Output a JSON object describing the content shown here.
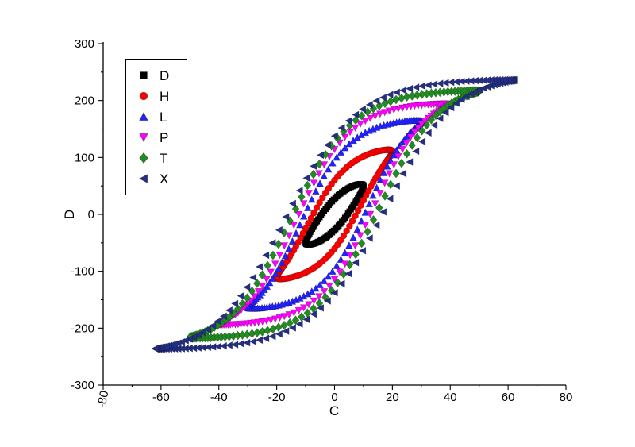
{
  "chart_data": {
    "type": "scatter",
    "title": "",
    "xlabel": "C",
    "ylabel": "D",
    "xlim": [
      -80,
      80
    ],
    "ylim": [
      -300,
      300
    ],
    "x_ticks": [
      -80,
      -60,
      -40,
      -20,
      0,
      20,
      40,
      60,
      80
    ],
    "y_ticks": [
      -300,
      -200,
      -100,
      0,
      100,
      200,
      300
    ],
    "x_minor_step": 10,
    "y_minor_step": 50,
    "grid": false,
    "legend_position": "top-left",
    "series_note": "Six nested hysteresis loops; each loop parameterized by x(t)=-A*cos(t), y(t)=S*tanh((x - Hc*sin(t))/w)",
    "series": [
      {
        "name": "D",
        "color": "#000000",
        "marker": "square",
        "loop": {
          "x_amplitude": 10,
          "y_scale": 80,
          "softness": 14,
          "coercivity": 5,
          "points": 110
        },
        "tip": [
          10,
          49
        ],
        "remanence": 27
      },
      {
        "name": "H",
        "color": "#ff0000",
        "marker": "circle",
        "loop": {
          "x_amplitude": 20,
          "y_scale": 130,
          "softness": 16,
          "coercivity": 8,
          "points": 120
        },
        "tip": [
          20,
          110
        ],
        "remanence": 60
      },
      {
        "name": "L",
        "color": "#2222ff",
        "marker": "triangle-up",
        "loop": {
          "x_amplitude": 30,
          "y_scale": 175,
          "softness": 18,
          "coercivity": 11,
          "points": 130
        },
        "tip": [
          30,
          163
        ],
        "remanence": 95
      },
      {
        "name": "P",
        "color": "#ff00ff",
        "marker": "triangle-down",
        "loop": {
          "x_amplitude": 40,
          "y_scale": 200,
          "softness": 20,
          "coercivity": 13,
          "points": 140
        },
        "tip": [
          40,
          193
        ],
        "remanence": 115
      },
      {
        "name": "T",
        "color": "#228b22",
        "marker": "diamond",
        "loop": {
          "x_amplitude": 50,
          "y_scale": 222,
          "softness": 23,
          "coercivity": 15,
          "points": 150
        },
        "tip": [
          50,
          216
        ],
        "remanence": 127
      },
      {
        "name": "X",
        "color": "#252e87",
        "marker": "triangle-left",
        "loop": {
          "x_amplitude": 62,
          "y_scale": 240,
          "softness": 26,
          "coercivity": 17,
          "points": 160
        },
        "tip": [
          62,
          236
        ],
        "remanence": 137
      }
    ]
  },
  "figure": {
    "background": "#ffffff",
    "axis_color": "#000000"
  }
}
